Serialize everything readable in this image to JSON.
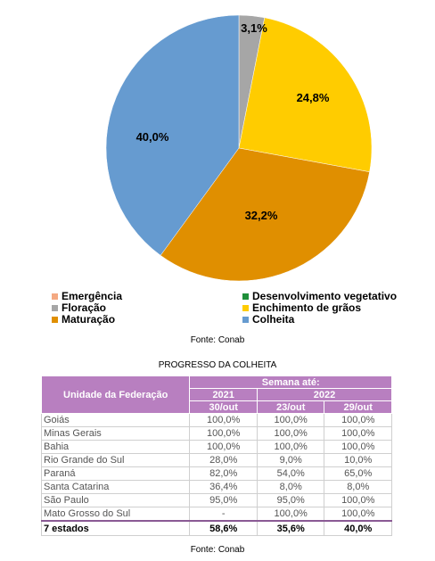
{
  "chart_data": {
    "type": "pie",
    "slices": [
      {
        "name": "Emergência",
        "value": 0.0,
        "color": "#f4a982",
        "label": ""
      },
      {
        "name": "Desenvolvimento vegetativo",
        "value": 0.0,
        "color": "#1f8f3a",
        "label": ""
      },
      {
        "name": "Floração",
        "value": 3.1,
        "color": "#a6a6a6",
        "label": "3,1%"
      },
      {
        "name": "Enchimento de grãos",
        "value": 24.8,
        "color": "#ffcc00",
        "label": "24,8%"
      },
      {
        "name": "Maturação",
        "value": 32.2,
        "color": "#e08f00",
        "label": "32,2%"
      },
      {
        "name": "Colheita",
        "value": 40.0,
        "color": "#669bd0",
        "label": "40,0%"
      }
    ],
    "legend_left": [
      "Emergência",
      "Floração",
      "Maturação"
    ],
    "legend_right": [
      "Desenvolvimento vegetativo",
      "Enchimento de grãos",
      "Colheita"
    ]
  },
  "source_top": "Fonte: Conab",
  "table": {
    "title": "PROGRESSO DA COLHEITA",
    "header_uf": "Unidade da Federação",
    "header_week": "Semana até:",
    "years": [
      "2021",
      "2022"
    ],
    "dates": [
      "30/out",
      "23/out",
      "29/out"
    ],
    "rows": [
      {
        "uf": "Goiás",
        "v": [
          "100,0%",
          "100,0%",
          "100,0%"
        ]
      },
      {
        "uf": "Minas Gerais",
        "v": [
          "100,0%",
          "100,0%",
          "100,0%"
        ]
      },
      {
        "uf": "Bahia",
        "v": [
          "100,0%",
          "100,0%",
          "100,0%"
        ]
      },
      {
        "uf": "Rio Grande do Sul",
        "v": [
          "28,0%",
          "9,0%",
          "10,0%"
        ]
      },
      {
        "uf": "Paraná",
        "v": [
          "82,0%",
          "54,0%",
          "65,0%"
        ]
      },
      {
        "uf": "Santa Catarina",
        "v": [
          "36,4%",
          "8,0%",
          "8,0%"
        ]
      },
      {
        "uf": "São Paulo",
        "v": [
          "95,0%",
          "95,0%",
          "100,0%"
        ]
      },
      {
        "uf": "Mato Grosso do Sul",
        "v": [
          "-",
          "100,0%",
          "100,0%"
        ]
      }
    ],
    "total": {
      "uf": "7 estados",
      "v": [
        "58,6%",
        "35,6%",
        "40,0%"
      ]
    }
  },
  "source_bottom": "Fonte: Conab"
}
